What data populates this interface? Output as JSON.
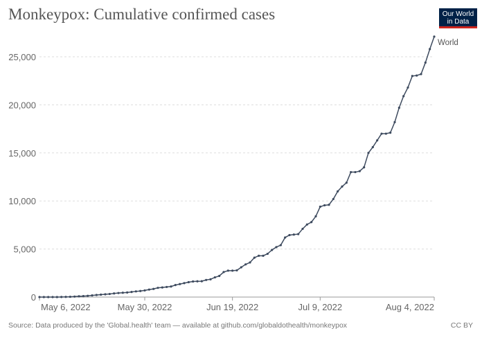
{
  "title": "Monkeypox: Cumulative confirmed cases",
  "logo": {
    "line1": "Our World",
    "line2": "in Data",
    "bg": "#002147",
    "accent": "#ce261e"
  },
  "footer": {
    "source": "Source: Data produced by the 'Global.health' team — available at github.com/globaldothealth/monkeypox",
    "license": "CC BY"
  },
  "chart_data": {
    "type": "line",
    "title": "Monkeypox: Cumulative confirmed cases",
    "xlabel": "",
    "ylabel": "",
    "ylim": [
      0,
      27100
    ],
    "grid": "horizontal dashed",
    "x_ticks": [
      {
        "date": "2022-05-06",
        "label": "May 6, 2022"
      },
      {
        "date": "2022-05-30",
        "label": "May 30, 2022"
      },
      {
        "date": "2022-06-19",
        "label": "Jun 19, 2022"
      },
      {
        "date": "2022-07-09",
        "label": "Jul 9, 2022"
      },
      {
        "date": "2022-08-04",
        "label": "Aug 4, 2022"
      }
    ],
    "y_ticks": [
      {
        "value": 0,
        "label": "0"
      },
      {
        "value": 5000,
        "label": "5,000"
      },
      {
        "value": 10000,
        "label": "10,000"
      },
      {
        "value": 15000,
        "label": "15,000"
      },
      {
        "value": 20000,
        "label": "20,000"
      },
      {
        "value": 25000,
        "label": "25,000"
      }
    ],
    "x_range": [
      "2022-05-06",
      "2022-08-04"
    ],
    "series": [
      {
        "name": "World",
        "color": "#3d4a5e",
        "first_date": "2022-05-06",
        "interval": "daily",
        "values": [
          0,
          0,
          0,
          0,
          0,
          10,
          20,
          30,
          50,
          80,
          100,
          130,
          170,
          220,
          250,
          290,
          320,
          380,
          420,
          450,
          480,
          530,
          590,
          630,
          690,
          780,
          850,
          960,
          1000,
          1050,
          1100,
          1250,
          1350,
          1450,
          1550,
          1620,
          1640,
          1650,
          1780,
          1850,
          2050,
          2200,
          2600,
          2750,
          2750,
          2780,
          3100,
          3400,
          3600,
          4100,
          4300,
          4300,
          4500,
          4900,
          5200,
          5400,
          6200,
          6450,
          6500,
          6550,
          7100,
          7550,
          7800,
          8400,
          9400,
          9550,
          9600,
          10200,
          11000,
          11500,
          11900,
          13000,
          13000,
          13100,
          13500,
          15000,
          15600,
          16300,
          17000,
          17000,
          17100,
          18200,
          19700,
          20900,
          21800,
          23000,
          23050,
          23200,
          24400,
          25800,
          27100
        ]
      }
    ]
  }
}
